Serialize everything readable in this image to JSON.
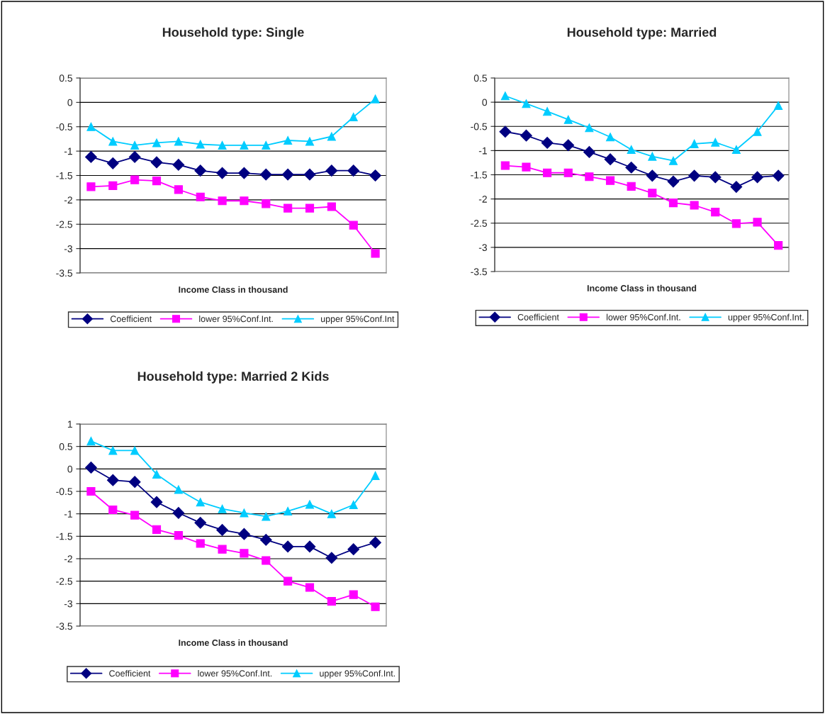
{
  "chart_data": [
    {
      "type": "line",
      "title": "Household type: Single",
      "xlabel": "Income Class in thousand",
      "categories": [
        null,
        null,
        null,
        null,
        null,
        null,
        null,
        null,
        null,
        null,
        null,
        null,
        null,
        null
      ],
      "ylim": [
        -3.5,
        0.5
      ],
      "yticks": [
        -3.5,
        -3,
        -2.5,
        -2,
        -1.5,
        -1,
        -0.5,
        0,
        0.5
      ],
      "grid": "y",
      "legend": "bottom",
      "series": [
        {
          "name": "Coefficient",
          "color": "#000080",
          "marker": "diamond",
          "values": [
            -1.12,
            -1.25,
            -1.12,
            -1.23,
            -1.28,
            -1.4,
            -1.45,
            -1.45,
            -1.48,
            -1.48,
            -1.48,
            -1.4,
            -1.4,
            -1.5
          ]
        },
        {
          "name": "lower 95%Conf.Int.",
          "color": "#ff00ff",
          "marker": "square",
          "values": [
            -1.73,
            -1.71,
            -1.59,
            -1.61,
            -1.79,
            -1.94,
            -2.02,
            -2.02,
            -2.08,
            -2.17,
            -2.17,
            -2.14,
            -2.52,
            -3.1
          ]
        },
        {
          "name": "upper 95%Conf.Int",
          "color": "#00ccff",
          "marker": "triangle",
          "values": [
            -0.5,
            -0.8,
            -0.88,
            -0.83,
            -0.8,
            -0.86,
            -0.88,
            -0.88,
            -0.88,
            -0.78,
            -0.8,
            -0.7,
            -0.3,
            0.07
          ]
        }
      ]
    },
    {
      "type": "line",
      "title": "Household type: Married",
      "xlabel": "Income Class in thousand",
      "categories": [
        null,
        null,
        null,
        null,
        null,
        null,
        null,
        null,
        null,
        null,
        null,
        null,
        null,
        null
      ],
      "ylim": [
        -3.5,
        0.5
      ],
      "yticks": [
        -3.5,
        -3,
        -2.5,
        -2,
        -1.5,
        -1,
        -0.5,
        0,
        0.5
      ],
      "grid": "y",
      "legend": "bottom",
      "series": [
        {
          "name": "Coefficient",
          "color": "#000080",
          "marker": "diamond",
          "values": [
            -0.61,
            -0.69,
            -0.84,
            -0.89,
            -1.03,
            -1.18,
            -1.35,
            -1.52,
            -1.64,
            -1.52,
            -1.55,
            -1.75,
            -1.55,
            -1.52
          ]
        },
        {
          "name": "lower 95%Conf.Int.",
          "color": "#ff00ff",
          "marker": "square",
          "values": [
            -1.31,
            -1.34,
            -1.46,
            -1.46,
            -1.54,
            -1.62,
            -1.74,
            -1.88,
            -2.08,
            -2.13,
            -2.27,
            -2.51,
            -2.48,
            -2.96
          ]
        },
        {
          "name": "upper 95%Conf.Int.",
          "color": "#00ccff",
          "marker": "triangle",
          "values": [
            0.13,
            -0.03,
            -0.19,
            -0.36,
            -0.53,
            -0.72,
            -0.98,
            -1.12,
            -1.21,
            -0.86,
            -0.83,
            -0.98,
            -0.61,
            -0.07
          ]
        }
      ]
    },
    {
      "type": "line",
      "title": "Household type: Married 2 Kids",
      "xlabel": "Income Class in thousand",
      "categories": [
        null,
        null,
        null,
        null,
        null,
        null,
        null,
        null,
        null,
        null,
        null,
        null,
        null,
        null
      ],
      "ylim": [
        -3.5,
        1
      ],
      "yticks": [
        -3.5,
        -3,
        -2.5,
        -2,
        -1.5,
        -1,
        -0.5,
        0,
        0.5,
        1
      ],
      "grid": "y",
      "legend": "bottom",
      "series": [
        {
          "name": "Coefficient",
          "color": "#000080",
          "marker": "diamond",
          "values": [
            0.03,
            -0.25,
            -0.29,
            -0.74,
            -0.98,
            -1.2,
            -1.36,
            -1.45,
            -1.58,
            -1.73,
            -1.73,
            -1.98,
            -1.79,
            -1.64
          ]
        },
        {
          "name": "lower 95%Conf.Int.",
          "color": "#ff00ff",
          "marker": "square",
          "values": [
            -0.5,
            -0.91,
            -1.03,
            -1.35,
            -1.48,
            -1.66,
            -1.79,
            -1.88,
            -2.04,
            -2.5,
            -2.64,
            -2.95,
            -2.8,
            -3.07
          ]
        },
        {
          "name": "upper 95%Conf.Int.",
          "color": "#00ccff",
          "marker": "triangle",
          "values": [
            0.62,
            0.41,
            0.41,
            -0.12,
            -0.46,
            -0.74,
            -0.89,
            -0.98,
            -1.06,
            -0.94,
            -0.79,
            -1.0,
            -0.8,
            -0.15
          ]
        }
      ]
    }
  ]
}
